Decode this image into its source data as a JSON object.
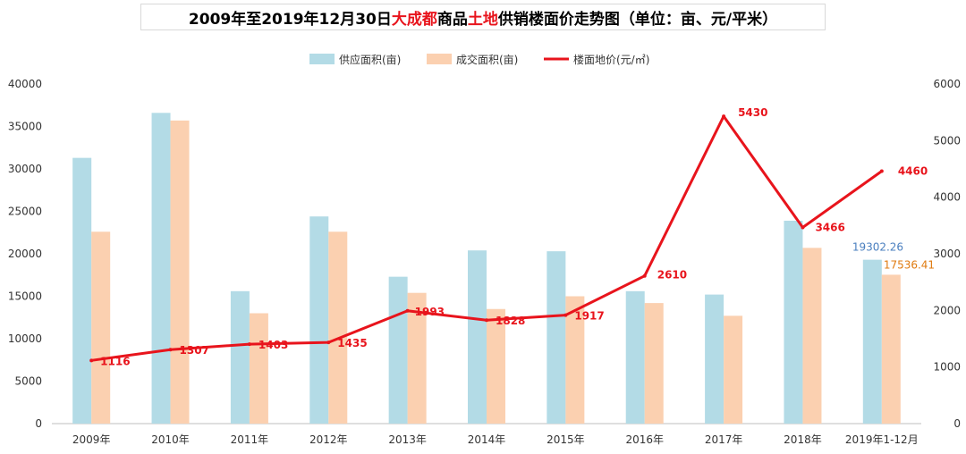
{
  "title": {
    "part1": "2009年至2019年12月30日",
    "part2": "大成都",
    "part3": "商品",
    "part4": "土地",
    "part5": "供销楼面价走势图（单位：亩、元/平米）"
  },
  "colors": {
    "supply": "#b3dbe6",
    "deal": "#fbd0b0",
    "price": "#e8141c",
    "supply_label": "#4a7fbf",
    "deal_label": "#e07b10"
  },
  "chart_data": {
    "type": "bar",
    "categories": [
      "2009年",
      "2010年",
      "2011年",
      "2012年",
      "2013年",
      "2014年",
      "2015年",
      "2016年",
      "2017年",
      "2018年",
      "2019年1-12月"
    ],
    "series": [
      {
        "name": "供应面积(亩)",
        "type": "bar",
        "axis": "left",
        "values": [
          31300,
          36600,
          15600,
          24400,
          17300,
          20400,
          20300,
          15600,
          15200,
          23900,
          19302.26
        ]
      },
      {
        "name": "成交面积(亩)",
        "type": "bar",
        "axis": "left",
        "values": [
          22600,
          35700,
          13000,
          22600,
          15400,
          13500,
          15000,
          14200,
          12700,
          20700,
          17536.41
        ]
      },
      {
        "name": "楼面地价(元/㎡)",
        "type": "line",
        "axis": "right",
        "values": [
          1116,
          1307,
          1403,
          1435,
          1993,
          1828,
          1917,
          2610,
          5430,
          3466,
          4460
        ]
      }
    ],
    "price_labels": [
      "1116",
      "1307",
      "1403",
      "1435",
      "1993",
      "1828",
      "1917",
      "2610",
      "5430",
      "3466",
      "4460"
    ],
    "supply_last_label": "19302.26",
    "deal_last_label": "17536.41",
    "left_axis": {
      "ylim": [
        0,
        40000
      ],
      "ticks": [
        "0",
        "5000",
        "10000",
        "15000",
        "20000",
        "25000",
        "30000",
        "35000",
        "40000"
      ]
    },
    "right_axis": {
      "ylim": [
        0,
        6000
      ],
      "ticks": [
        "0",
        "1000",
        "2000",
        "3000",
        "4000",
        "5000",
        "6000"
      ]
    },
    "legend": [
      "供应面积(亩)",
      "成交面积(亩)",
      "楼面地价(元/㎡)"
    ],
    "legend_position": "top-center",
    "grid": false
  }
}
